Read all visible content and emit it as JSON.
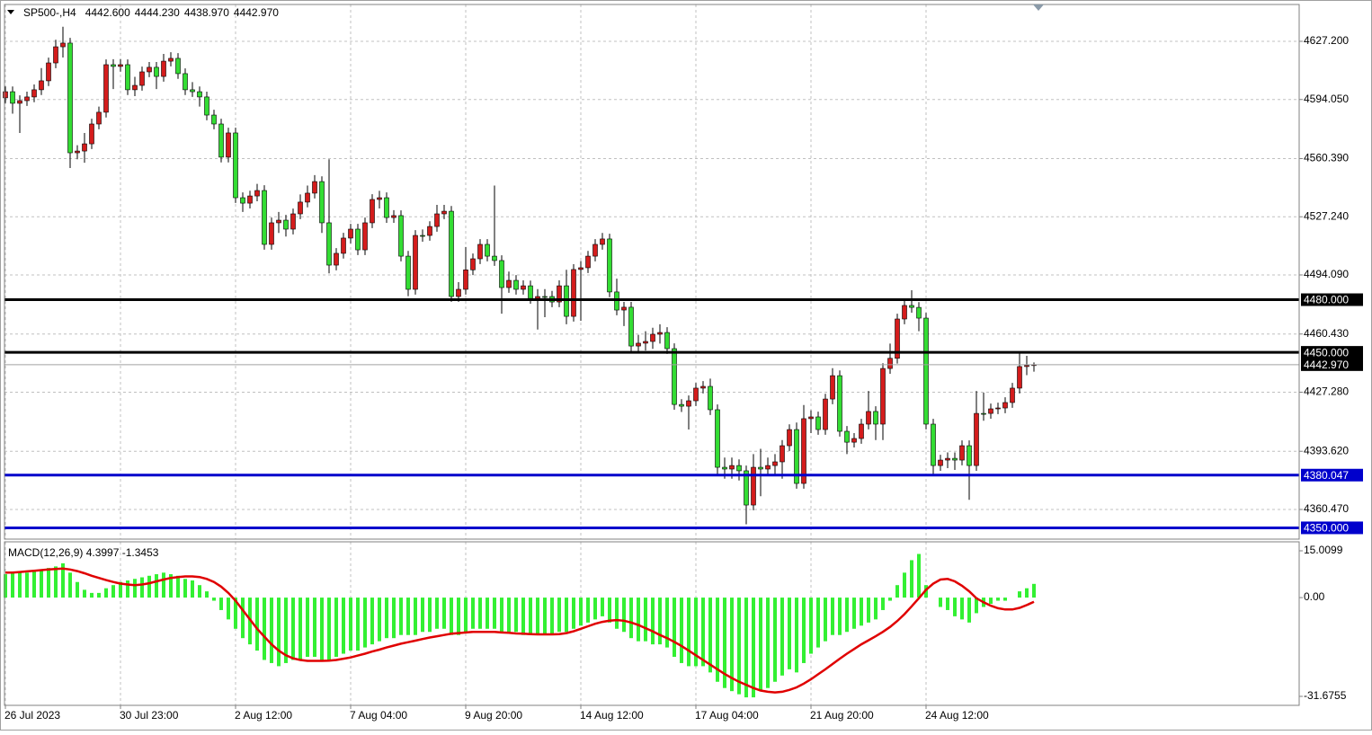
{
  "chart_data": {
    "type": "candlestick",
    "title": "SP500-,H4",
    "title_values": [
      "4442.600",
      "4444.230",
      "4438.970",
      "4442.970"
    ],
    "up_color": "#d41c1c",
    "down_color": "#33dd33",
    "wick_color": "#000000",
    "grid": true,
    "xlim": [
      -0.125,
      179.875
    ],
    "xticks": [
      {
        "value": 0,
        "label": "26 Jul 2023"
      },
      {
        "value": 16,
        "label": "30 Jul 23:00"
      },
      {
        "value": 32,
        "label": "2 Aug 12:00"
      },
      {
        "value": 48,
        "label": "7 Aug 04:00"
      },
      {
        "value": 64,
        "label": "9 Aug 20:00"
      },
      {
        "value": 80,
        "label": "14 Aug 12:00"
      },
      {
        "value": 96,
        "label": "17 Aug 04:00"
      },
      {
        "value": 112,
        "label": "21 Aug 20:00"
      },
      {
        "value": 128,
        "label": "24 Aug 12:00"
      }
    ],
    "ylim": [
      4343.57,
      4648.19
    ],
    "yticks": [
      {
        "value": 4627.2,
        "label": "4627.200"
      },
      {
        "value": 4594.05,
        "label": "4594.050"
      },
      {
        "value": 4560.39,
        "label": "4560.390"
      },
      {
        "value": 4527.24,
        "label": "4527.240"
      },
      {
        "value": 4494.09,
        "label": "4494.090"
      },
      {
        "value": 4460.43,
        "label": "4460.430"
      },
      {
        "value": 4427.28,
        "label": "4427.280"
      },
      {
        "value": 4393.62,
        "label": "4393.620"
      },
      {
        "value": 4360.47,
        "label": "4360.470"
      }
    ],
    "levels": [
      {
        "value": 4480,
        "label": "4480.000",
        "color": "#000000"
      },
      {
        "value": 4450,
        "label": "4450.000",
        "color": "#000000"
      },
      {
        "value": 4380.047,
        "label": "4380.047",
        "color": "#0000cc"
      },
      {
        "value": 4350,
        "label": "4350.000",
        "color": "#0000cc"
      }
    ],
    "current_price": {
      "value": 4442.97,
      "label": "4442.970"
    },
    "open": [
      4595.0,
      4598.5,
      4591.9,
      4593.4,
      4595.5,
      4599.6,
      4604.7,
      4614.9,
      4624.1,
      4626.2,
      4563.7,
      4564.7,
      4568.8,
      4580.1,
      4586.8,
      4613.9,
      4612.9,
      4613.9,
      4599.6,
      4602.1,
      4609.8,
      4612.4,
      4607.2,
      4615.9,
      4617.5,
      4608.8,
      4599.6,
      4598.5,
      4595.5,
      4585.2,
      4580.1,
      4561.2,
      4575.0,
      4538.1,
      4535.0,
      4539.1,
      4542.2,
      4511.5,
      4523.8,
      4525.3,
      4520.2,
      4528.9,
      4535.6,
      4540.7,
      4547.3,
      4523.8,
      4499.7,
      4506.4,
      4515.1,
      4520.2,
      4508.4,
      4523.8,
      4537.1,
      4538.1,
      4526.8,
      4527.9,
      4504.8,
      4485.9,
      4516.6,
      4516.6,
      4521.7,
      4528.9,
      4530.4,
      4481.8,
      4485.9,
      4497.0,
      4503.3,
      4511.5,
      4504.8,
      4502.3,
      4486.9,
      4491.0,
      4485.9,
      4487.9,
      4480.7,
      4481.8,
      4481.8,
      4478.7,
      4487.9,
      4470.5,
      4497.2,
      4498.2,
      4504.8,
      4511.5,
      4514.6,
      4484.4,
      4474.1,
      4475.7,
      4453.6,
      4455.2,
      4456.2,
      4460.3,
      4461.3,
      4452.1,
      4420.3,
      4419.3,
      4422.4,
      4429.6,
      4430.6,
      4417.3,
      4384.5,
      4383.5,
      4385.5,
      4382.5,
      4363.0,
      4384.5,
      4383.5,
      4385.5,
      4387.6,
      4396.8,
      4406.0,
      4375.3,
      4412.2,
      4413.2,
      4406.0,
      4423.4,
      4436.7,
      4405.0,
      4398.8,
      4400.9,
      4409.1,
      4416.3,
      4409.1,
      4440.8,
      4446.6,
      4469.0,
      4476.7,
      4475.6,
      4469.5,
      4409.1,
      4385.5,
      4388.6,
      4389.6,
      4388.6,
      4396.8,
      4385.5,
      4415.2,
      4415.2,
      4417.8,
      4418.3,
      4421.4,
      4429.6,
      4441.9,
      4442.6
    ],
    "high": [
      4601.5,
      4601.5,
      4596.4,
      4598.5,
      4602.6,
      4612.0,
      4617.9,
      4628.1,
      4635.5,
      4629.2,
      4568.0,
      4575.0,
      4583.1,
      4590.0,
      4616.9,
      4617.0,
      4617.0,
      4616.9,
      4607.0,
      4612.8,
      4615.4,
      4615.4,
      4620.0,
      4621.0,
      4620.5,
      4611.8,
      4604.0,
      4601.5,
      4598.5,
      4588.2,
      4583.1,
      4578.0,
      4578.0,
      4541.1,
      4542.1,
      4546.0,
      4545.2,
      4526.8,
      4530.0,
      4528.3,
      4531.9,
      4540.0,
      4545.0,
      4551.0,
      4550.3,
      4560.0,
      4509.4,
      4518.1,
      4523.2,
      4523.2,
      4526.8,
      4540.1,
      4542.0,
      4541.1,
      4531.0,
      4530.9,
      4507.8,
      4519.6,
      4520.0,
      4524.7,
      4534.0,
      4534.0,
      4533.4,
      4490.0,
      4510.0,
      4506.3,
      4514.5,
      4514.5,
      4545.0,
      4505.3,
      4496.0,
      4494.0,
      4491.0,
      4490.9,
      4486.0,
      4486.0,
      4485.0,
      4491.0,
      4497.0,
      4500.2,
      4502.0,
      4507.8,
      4514.5,
      4518.0,
      4517.6,
      4492.0,
      4478.7,
      4478.7,
      4460.0,
      4462.0,
      4464.0,
      4466.0,
      4464.3,
      4455.1,
      4423.3,
      4425.4,
      4432.6,
      4433.6,
      4435.0,
      4420.3,
      4390.0,
      4390.0,
      4389.0,
      4385.5,
      4392.0,
      4395.0,
      4390.0,
      4392.0,
      4400.0,
      4409.0,
      4410.0,
      4420.0,
      4417.0,
      4416.2,
      4426.4,
      4441.0,
      4439.7,
      4408.0,
      4404.0,
      4412.1,
      4428.0,
      4419.3,
      4443.8,
      4455.0,
      4472.0,
      4480.0,
      4485.4,
      4478.6,
      4472.5,
      4412.1,
      4391.6,
      4393.0,
      4393.0,
      4399.8,
      4399.8,
      4428.0,
      4427.0,
      4420.8,
      4421.3,
      4424.4,
      4432.6,
      4450.0,
      4448.0,
      4444.23
    ],
    "low": [
      4592.0,
      4586.0,
      4575.0,
      4590.4,
      4592.5,
      4596.6,
      4601.7,
      4611.9,
      4618.0,
      4555.0,
      4560.0,
      4558.0,
      4565.8,
      4577.1,
      4583.8,
      4600.0,
      4609.9,
      4596.6,
      4596.0,
      4599.1,
      4606.8,
      4600.0,
      4604.2,
      4612.9,
      4605.8,
      4596.6,
      4595.5,
      4590.0,
      4582.2,
      4577.1,
      4558.2,
      4558.2,
      4535.1,
      4530.0,
      4532.0,
      4536.1,
      4508.5,
      4508.5,
      4518.0,
      4516.0,
      4517.2,
      4525.9,
      4532.6,
      4537.7,
      4518.0,
      4495.0,
      4496.7,
      4503.4,
      4512.1,
      4505.4,
      4505.4,
      4520.8,
      4532.0,
      4523.8,
      4523.8,
      4501.8,
      4482.0,
      4482.9,
      4513.0,
      4513.6,
      4518.7,
      4525.9,
      4478.8,
      4478.8,
      4482.9,
      4494.0,
      4500.3,
      4501.8,
      4499.3,
      4472.0,
      4483.9,
      4482.9,
      4482.9,
      4477.7,
      4463.0,
      4470.0,
      4475.7,
      4475.7,
      4466.0,
      4467.5,
      4468.0,
      4495.2,
      4501.8,
      4508.5,
      4481.4,
      4471.1,
      4465.0,
      4450.6,
      4450.6,
      4451.0,
      4452.0,
      4455.0,
      4449.1,
      4417.3,
      4416.0,
      4406.0,
      4419.4,
      4426.6,
      4414.3,
      4380.0,
      4378.0,
      4378.0,
      4377.0,
      4352.0,
      4360.0,
      4368.0,
      4380.5,
      4380.0,
      4378.0,
      4393.8,
      4372.3,
      4372.3,
      4404.0,
      4403.0,
      4403.0,
      4420.4,
      4402.0,
      4392.0,
      4395.8,
      4397.9,
      4406.1,
      4400.0,
      4400.0,
      4437.8,
      4443.6,
      4466.0,
      4472.6,
      4462.0,
      4406.1,
      4380.0,
      4382.5,
      4384.0,
      4383.0,
      4385.6,
      4366.0,
      4382.5,
      4411.0,
      4412.2,
      4414.8,
      4415.3,
      4418.4,
      4426.6,
      4437.0,
      4438.97
    ],
    "close": [
      4598.5,
      4591.9,
      4593.4,
      4595.5,
      4599.6,
      4604.7,
      4614.9,
      4624.1,
      4626.2,
      4563.7,
      4564.7,
      4568.8,
      4580.1,
      4586.8,
      4613.9,
      4612.9,
      4613.9,
      4599.6,
      4602.1,
      4609.8,
      4612.4,
      4607.2,
      4615.9,
      4617.5,
      4608.8,
      4599.6,
      4598.5,
      4595.5,
      4585.2,
      4580.1,
      4561.2,
      4575.0,
      4538.1,
      4535.0,
      4539.1,
      4542.2,
      4511.5,
      4523.8,
      4525.3,
      4520.2,
      4528.9,
      4535.6,
      4540.7,
      4547.3,
      4523.8,
      4499.7,
      4506.4,
      4515.1,
      4520.2,
      4508.4,
      4523.8,
      4537.1,
      4538.1,
      4526.8,
      4527.9,
      4504.8,
      4485.9,
      4516.6,
      4516.6,
      4521.7,
      4528.9,
      4530.4,
      4481.8,
      4485.9,
      4497.0,
      4503.3,
      4511.5,
      4504.8,
      4502.3,
      4486.9,
      4491.0,
      4485.9,
      4487.9,
      4480.7,
      4481.8,
      4481.8,
      4478.7,
      4487.9,
      4470.5,
      4497.2,
      4498.2,
      4504.8,
      4511.5,
      4514.6,
      4484.4,
      4474.1,
      4475.7,
      4453.6,
      4455.2,
      4456.2,
      4460.3,
      4461.3,
      4452.1,
      4420.3,
      4419.3,
      4422.4,
      4429.6,
      4430.6,
      4417.3,
      4384.5,
      4383.5,
      4385.5,
      4382.5,
      4363.0,
      4384.5,
      4383.5,
      4385.5,
      4387.6,
      4396.8,
      4406.0,
      4375.3,
      4412.2,
      4413.2,
      4406.0,
      4423.4,
      4436.7,
      4405.0,
      4398.8,
      4400.9,
      4409.1,
      4416.3,
      4409.1,
      4440.8,
      4446.6,
      4469.0,
      4476.7,
      4475.6,
      4469.5,
      4409.1,
      4385.5,
      4388.6,
      4389.6,
      4388.6,
      4396.8,
      4385.5,
      4415.2,
      4415.2,
      4417.8,
      4418.3,
      4421.4,
      4429.6,
      4441.9,
      4442.6,
      4442.97
    ],
    "indicator": {
      "type": "macd",
      "label": "MACD(12,26,9) 4.3997 -1.3453",
      "histogram_color": "#33f033",
      "signal_color": "#e00000",
      "ylim": [
        -34.56,
        17.89
      ],
      "yticks": [
        {
          "value": 15.0099,
          "label": "15.0099"
        },
        {
          "value": 0,
          "label": "0.00"
        },
        {
          "value": -31.6755,
          "label": "-31.6755"
        }
      ],
      "histogram": [
        7.5,
        8,
        8,
        8,
        8.5,
        9,
        9.5,
        10,
        11,
        8,
        5,
        2.5,
        1.5,
        1.5,
        3,
        4,
        5,
        5.5,
        6,
        6.5,
        7,
        7.5,
        8,
        7.5,
        7,
        6,
        5.5,
        4,
        2,
        -1,
        -4,
        -7,
        -10,
        -13,
        -15,
        -17,
        -20,
        -21,
        -22,
        -21,
        -20,
        -20,
        -19,
        -19,
        -20,
        -20,
        -19,
        -18,
        -17,
        -17,
        -16,
        -15,
        -14,
        -13,
        -13,
        -12,
        -12,
        -12,
        -11,
        -11,
        -10,
        -10,
        -12,
        -12,
        -11,
        -10,
        -10,
        -10,
        -10,
        -11,
        -11,
        -11,
        -12,
        -12,
        -12,
        -12,
        -12,
        -11,
        -11,
        -10,
        -9,
        -8,
        -7,
        -6,
        -8,
        -10,
        -11,
        -13,
        -14,
        -14,
        -15,
        -15,
        -16,
        -19,
        -21,
        -22,
        -22,
        -22,
        -24,
        -27,
        -29,
        -30,
        -31,
        -32,
        -32,
        -30,
        -29,
        -27,
        -25,
        -23,
        -24,
        -21,
        -18,
        -16,
        -14,
        -12,
        -12,
        -11,
        -10,
        -9,
        -8,
        -7,
        -4,
        -1,
        4,
        8,
        12,
        14,
        4,
        0,
        -3,
        -4,
        -6,
        -7,
        -8,
        -5,
        -3,
        -2,
        -1,
        -1,
        0,
        2,
        3,
        4.3997
      ],
      "signal": [
        8,
        8,
        8.2,
        8.4,
        8.6,
        8.8,
        9,
        9.2,
        9.3,
        9,
        8.5,
        7.8,
        7,
        6.3,
        5.6,
        5,
        4.5,
        4.2,
        4,
        4.2,
        4.6,
        5.2,
        5.8,
        6.3,
        6.6,
        6.8,
        6.8,
        6.6,
        6,
        5,
        3.5,
        1.5,
        -1,
        -4,
        -7,
        -10,
        -12.5,
        -15,
        -17,
        -18.5,
        -19.5,
        -20,
        -20.3,
        -20.3,
        -20.3,
        -20.2,
        -20,
        -19.6,
        -19.2,
        -18.6,
        -18,
        -17.3,
        -16.7,
        -16,
        -15.4,
        -14.8,
        -14.3,
        -13.8,
        -13.3,
        -12.8,
        -12.4,
        -12,
        -11.6,
        -11.4,
        -11.2,
        -11,
        -11,
        -11,
        -11,
        -11.2,
        -11.3,
        -11.5,
        -11.6,
        -11.7,
        -11.8,
        -11.8,
        -11.8,
        -11.7,
        -11.4,
        -10.8,
        -10,
        -9.2,
        -8.4,
        -7.8,
        -7.4,
        -7.2,
        -7.4,
        -8,
        -8.8,
        -9.8,
        -10.8,
        -12,
        -13,
        -14.2,
        -15.5,
        -17,
        -18.5,
        -20,
        -21.5,
        -23,
        -24.5,
        -25.8,
        -27,
        -28,
        -29,
        -29.8,
        -30.2,
        -30.4,
        -30.2,
        -29.6,
        -28.8,
        -27.6,
        -26.2,
        -24.6,
        -23,
        -21.3,
        -19.6,
        -18,
        -16.5,
        -15,
        -13.7,
        -12.4,
        -11,
        -9.4,
        -7.5,
        -5.3,
        -2.8,
        -0.2,
        2.5,
        4.5,
        5.8,
        6,
        5.2,
        3.8,
        2,
        -0.2,
        -1.5,
        -2.6,
        -3.4,
        -3.8,
        -3.8,
        -3.3,
        -2.4,
        -1.3453
      ]
    }
  }
}
